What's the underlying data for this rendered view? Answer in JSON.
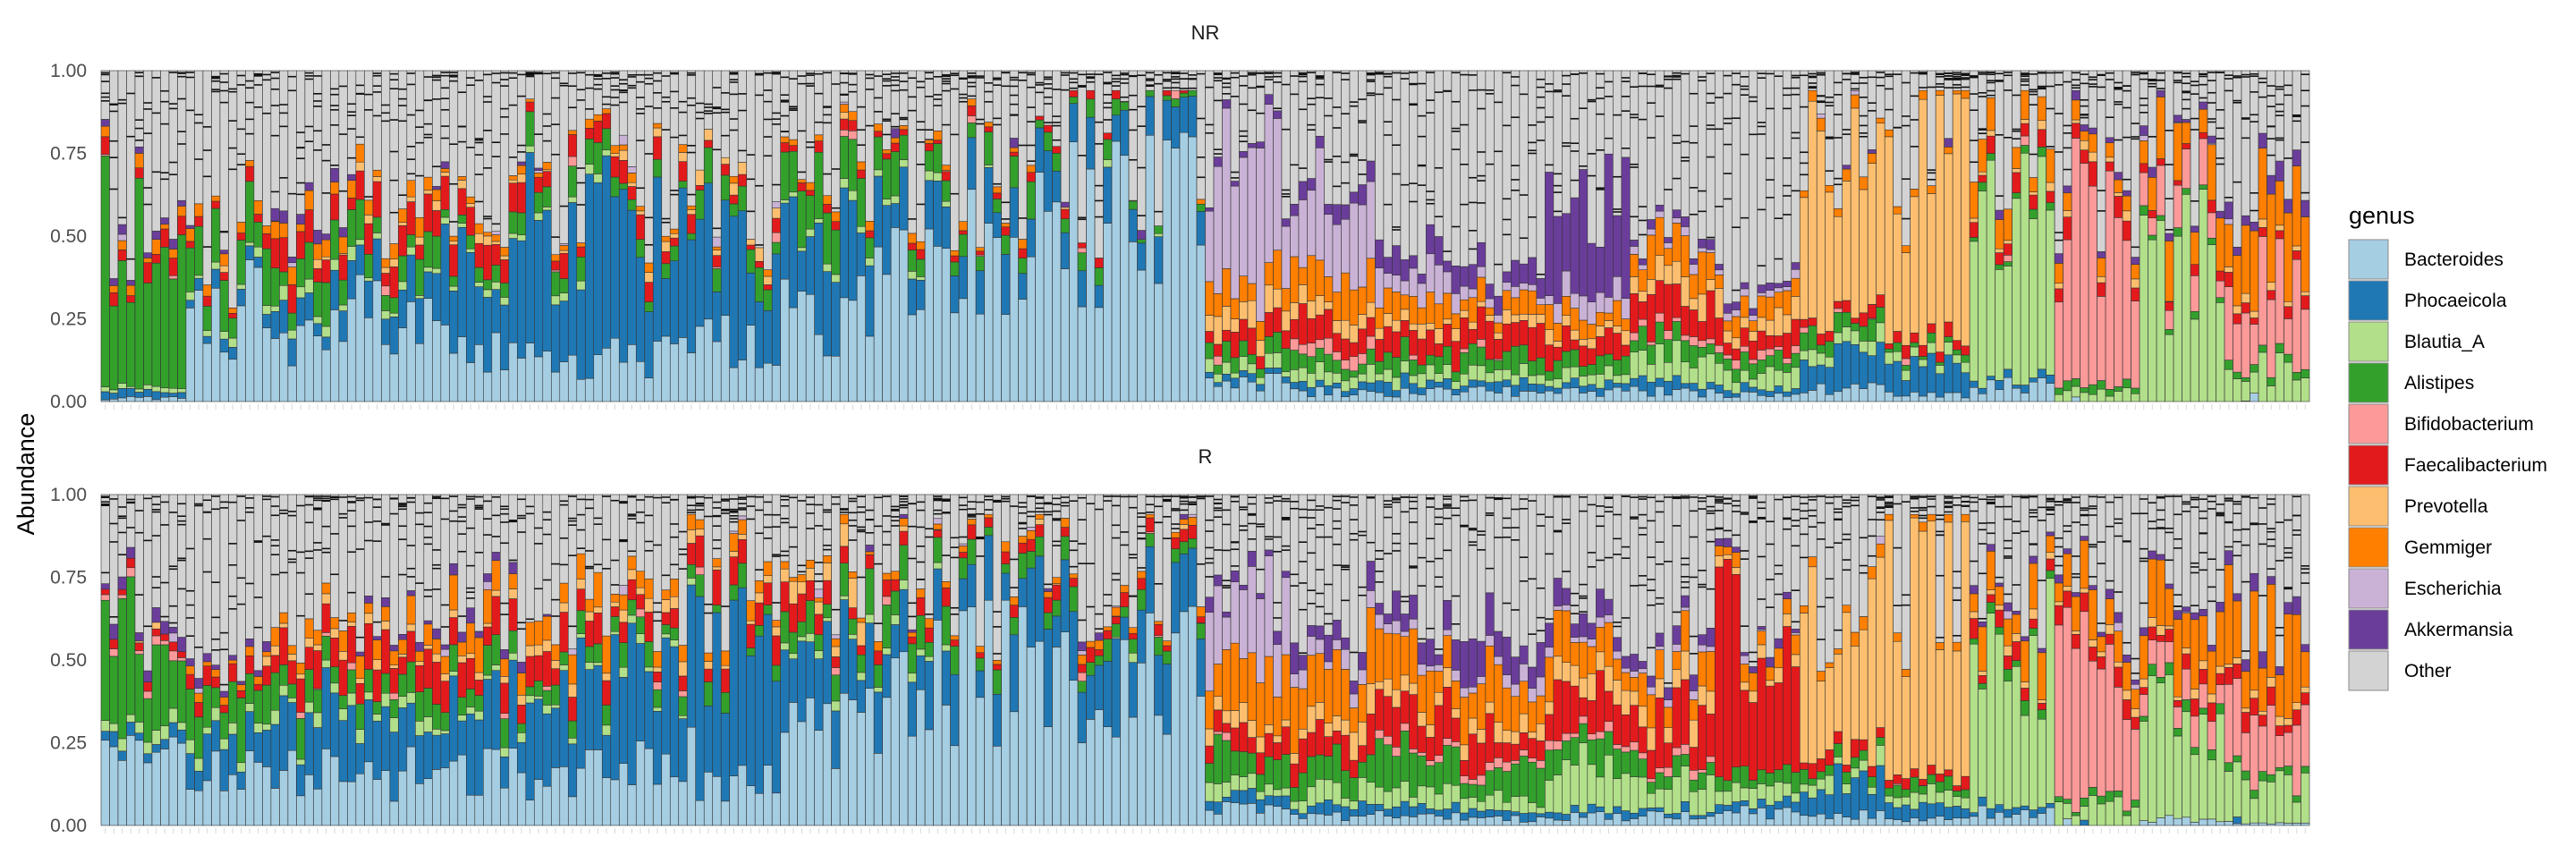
{
  "chart_data": {
    "type": "bar",
    "stacked": true,
    "ylabel": "Abundance",
    "xlabel": "",
    "ylim": [
      0,
      1
    ],
    "y_ticks": [
      "0.00",
      "0.25",
      "0.50",
      "0.75",
      "1.00"
    ],
    "grid": false,
    "legend_placement": "right",
    "legend": {
      "title": "genus",
      "entries": [
        {
          "name": "Bacteroides",
          "color": "#a6cee3"
        },
        {
          "name": "Phocaeicola",
          "color": "#1f78b4"
        },
        {
          "name": "Blautia_A",
          "color": "#b2df8a"
        },
        {
          "name": "Alistipes",
          "color": "#33a02c"
        },
        {
          "name": "Bifidobacterium",
          "color": "#fb9a99"
        },
        {
          "name": "Faecalibacterium",
          "color": "#e31a1c"
        },
        {
          "name": "Prevotella",
          "color": "#fdbf6f"
        },
        {
          "name": "Gemmiger",
          "color": "#ff7f00"
        },
        {
          "name": "Escherichia",
          "color": "#cab2d6"
        },
        {
          "name": "Akkermansia",
          "color": "#6a3d9a"
        },
        {
          "name": "Other",
          "color": "#d3d3d3"
        }
      ]
    },
    "panels": [
      {
        "title": "NR",
        "samples_per_segment": 10,
        "segments": [
          {
            "Bacteroides": 0.01,
            "Phocaeicola": 0.02,
            "Blautia_A": 0.01,
            "Alistipes": 0.46,
            "Faecalibacterium": 0.04,
            "Gemmiger": 0.03,
            "Akkermansia": 0.02
          },
          {
            "Bacteroides": 0.28,
            "Phocaeicola": 0.04,
            "Blautia_A": 0.02,
            "Alistipes": 0.12,
            "Faecalibacterium": 0.03,
            "Gemmiger": 0.03
          },
          {
            "Bacteroides": 0.22,
            "Phocaeicola": 0.08,
            "Blautia_A": 0.03,
            "Alistipes": 0.09,
            "Faecalibacterium": 0.07,
            "Gemmiger": 0.04,
            "Akkermansia": 0.03
          },
          {
            "Bacteroides": 0.25,
            "Phocaeicola": 0.1,
            "Blautia_A": 0.02,
            "Alistipes": 0.08,
            "Faecalibacterium": 0.08,
            "Prevotella": 0.02,
            "Gemmiger": 0.04
          },
          {
            "Bacteroides": 0.18,
            "Phocaeicola": 0.24,
            "Blautia_A": 0.02,
            "Alistipes": 0.05,
            "Faecalibacterium": 0.12,
            "Prevotella": 0.02,
            "Gemmiger": 0.02
          },
          {
            "Bacteroides": 0.12,
            "Phocaeicola": 0.4,
            "Blautia_A": 0.02,
            "Alistipes": 0.08,
            "Faecalibacterium": 0.06,
            "Gemmiger": 0.02
          },
          {
            "Bacteroides": 0.14,
            "Phocaeicola": 0.38,
            "Alistipes": 0.04,
            "Faecalibacterium": 0.05,
            "Prevotella": 0.02,
            "Gemmiger": 0.02
          },
          {
            "Bacteroides": 0.18,
            "Phocaeicola": 0.3,
            "Alistipes": 0.07,
            "Faecalibacterium": 0.03,
            "Prevotella": 0.03
          },
          {
            "Bacteroides": 0.26,
            "Phocaeicola": 0.22,
            "Blautia_A": 0.02,
            "Alistipes": 0.13,
            "Faecalibacterium": 0.03,
            "Gemmiger": 0.02
          },
          {
            "Bacteroides": 0.36,
            "Phocaeicola": 0.14,
            "Blautia_A": 0.02,
            "Alistipes": 0.09,
            "Faecalibacterium": 0.02,
            "Gemmiger": 0.02
          },
          {
            "Bacteroides": 0.42,
            "Phocaeicola": 0.12,
            "Alistipes": 0.08,
            "Faecalibacterium": 0.02,
            "Gemmiger": 0.02
          },
          {
            "Bacteroides": 0.62,
            "Phocaeicola": 0.12,
            "Alistipes": 0.04,
            "Faecalibacterium": 0.02
          },
          {
            "Bacteroides": 0.7,
            "Phocaeicola": 0.1,
            "Alistipes": 0.02
          },
          {
            "Bacteroides": 0.06,
            "Phocaeicola": 0.02,
            "Blautia_A": 0.03,
            "Alistipes": 0.05,
            "Faecalibacterium": 0.06,
            "Prevotella": 0.06,
            "Gemmiger": 0.08,
            "Escherichia": 0.34,
            "Akkermansia": 0.02
          },
          {
            "Bacteroides": 0.03,
            "Phocaeicola": 0.02,
            "Blautia_A": 0.04,
            "Alistipes": 0.04,
            "Bifidobacterium": 0.04,
            "Faecalibacterium": 0.08,
            "Prevotella": 0.04,
            "Gemmiger": 0.1,
            "Escherichia": 0.22,
            "Akkermansia": 0.04
          },
          {
            "Bacteroides": 0.03,
            "Phocaeicola": 0.03,
            "Blautia_A": 0.03,
            "Alistipes": 0.05,
            "Faecalibacterium": 0.06,
            "Prevotella": 0.03,
            "Gemmiger": 0.08,
            "Escherichia": 0.08,
            "Akkermansia": 0.06
          },
          {
            "Bacteroides": 0.03,
            "Phocaeicola": 0.03,
            "Blautia_A": 0.03,
            "Alistipes": 0.06,
            "Faecalibacterium": 0.08,
            "Prevotella": 0.03,
            "Gemmiger": 0.05,
            "Escherichia": 0.03,
            "Akkermansia": 0.06
          },
          {
            "Bacteroides": 0.03,
            "Phocaeicola": 0.02,
            "Blautia_A": 0.03,
            "Alistipes": 0.04,
            "Faecalibacterium": 0.06,
            "Prevotella": 0.03,
            "Gemmiger": 0.05,
            "Escherichia": 0.05,
            "Akkermansia": 0.3
          },
          {
            "Bacteroides": 0.03,
            "Phocaeicola": 0.03,
            "Blautia_A": 0.07,
            "Alistipes": 0.05,
            "Bifidobacterium": 0.02,
            "Faecalibacterium": 0.1,
            "Prevotella": 0.06,
            "Gemmiger": 0.1,
            "Escherichia": 0.02,
            "Akkermansia": 0.02
          },
          {
            "Bacteroides": 0.02,
            "Phocaeicola": 0.02,
            "Blautia_A": 0.05,
            "Alistipes": 0.04,
            "Bifidobacterium": 0.02,
            "Faecalibacterium": 0.06,
            "Prevotella": 0.06,
            "Gemmiger": 0.05,
            "Escherichia": 0.02,
            "Akkermansia": 0.02
          },
          {
            "Bacteroides": 0.04,
            "Phocaeicola": 0.1,
            "Blautia_A": 0.04,
            "Alistipes": 0.05,
            "Faecalibacterium": 0.03,
            "Prevotella": 0.46,
            "Gemmiger": 0.03
          },
          {
            "Bacteroides": 0.02,
            "Phocaeicola": 0.08,
            "Blautia_A": 0.03,
            "Alistipes": 0.02,
            "Faecalibacterium": 0.03,
            "Prevotella": 0.62,
            "Gemmiger": 0.02
          },
          {
            "Bacteroides": 0.05,
            "Phocaeicola": 0.02,
            "Blautia_A": 0.52,
            "Alistipes": 0.02,
            "Faecalibacterium": 0.04,
            "Prevotella": 0.02,
            "Gemmiger": 0.08
          },
          {
            "Blautia_A": 0.03,
            "Alistipes": 0.02,
            "Bifidobacterium": 0.52,
            "Faecalibacterium": 0.06,
            "Prevotella": 0.02,
            "Gemmiger": 0.05,
            "Akkermansia": 0.02
          },
          {
            "Blautia_A": 0.42,
            "Alistipes": 0.02,
            "Bifidobacterium": 0.1,
            "Faecalibacterium": 0.03,
            "Gemmiger": 0.14,
            "Akkermansia": 0.02
          },
          {
            "Blautia_A": 0.1,
            "Alistipes": 0.02,
            "Bifidobacterium": 0.22,
            "Faecalibacterium": 0.03,
            "Prevotella": 0.02,
            "Gemmiger": 0.22,
            "Akkermansia": 0.04
          }
        ]
      },
      {
        "title": "R",
        "samples_per_segment": 10,
        "segments": [
          {
            "Bacteroides": 0.18,
            "Phocaeicola": 0.03,
            "Blautia_A": 0.03,
            "Alistipes": 0.28,
            "Bifidobacterium": 0.02,
            "Faecalibacterium": 0.02,
            "Akkermansia": 0.03
          },
          {
            "Bacteroides": 0.16,
            "Phocaeicola": 0.1,
            "Blautia_A": 0.03,
            "Alistipes": 0.13,
            "Faecalibacterium": 0.04,
            "Gemmiger": 0.02,
            "Akkermansia": 0.02
          },
          {
            "Bacteroides": 0.16,
            "Phocaeicola": 0.16,
            "Blautia_A": 0.03,
            "Alistipes": 0.08,
            "Faecalibacterium": 0.08,
            "Prevotella": 0.02,
            "Gemmiger": 0.04
          },
          {
            "Bacteroides": 0.16,
            "Phocaeicola": 0.18,
            "Blautia_A": 0.03,
            "Alistipes": 0.06,
            "Faecalibacterium": 0.09,
            "Prevotella": 0.02,
            "Gemmiger": 0.06,
            "Akkermansia": 0.02
          },
          {
            "Bacteroides": 0.16,
            "Phocaeicola": 0.18,
            "Blautia_A": 0.02,
            "Alistipes": 0.06,
            "Faecalibacterium": 0.08,
            "Prevotella": 0.02,
            "Gemmiger": 0.07,
            "Akkermansia": 0.03
          },
          {
            "Bacteroides": 0.15,
            "Phocaeicola": 0.26,
            "Blautia_A": 0.02,
            "Alistipes": 0.05,
            "Faecalibacterium": 0.08,
            "Prevotella": 0.03,
            "Gemmiger": 0.08
          },
          {
            "Bacteroides": 0.22,
            "Phocaeicola": 0.34,
            "Blautia_A": 0.02,
            "Alistipes": 0.05,
            "Faecalibacterium": 0.06,
            "Prevotella": 0.03,
            "Gemmiger": 0.04
          },
          {
            "Bacteroides": 0.12,
            "Phocaeicola": 0.4,
            "Alistipes": 0.05,
            "Faecalibacterium": 0.07,
            "Prevotella": 0.02,
            "Gemmiger": 0.04
          },
          {
            "Bacteroides": 0.3,
            "Phocaeicola": 0.2,
            "Blautia_A": 0.02,
            "Alistipes": 0.08,
            "Faecalibacterium": 0.06,
            "Prevotella": 0.06,
            "Gemmiger": 0.02
          },
          {
            "Bacteroides": 0.42,
            "Phocaeicola": 0.14,
            "Blautia_A": 0.02,
            "Alistipes": 0.09,
            "Faecalibacterium": 0.04,
            "Gemmiger": 0.02
          },
          {
            "Bacteroides": 0.5,
            "Phocaeicola": 0.16,
            "Alistipes": 0.06,
            "Faecalibacterium": 0.03,
            "Gemmiger": 0.02
          },
          {
            "Bacteroides": 0.44,
            "Phocaeicola": 0.2,
            "Alistipes": 0.05,
            "Faecalibacterium": 0.03,
            "Gemmiger": 0.02
          },
          {
            "Bacteroides": 0.46,
            "Phocaeicola": 0.14,
            "Alistipes": 0.04,
            "Faecalibacterium": 0.03,
            "Gemmiger": 0.02
          },
          {
            "Bacteroides": 0.05,
            "Phocaeicola": 0.03,
            "Blautia_A": 0.04,
            "Alistipes": 0.1,
            "Faecalibacterium": 0.06,
            "Prevotella": 0.04,
            "Gemmiger": 0.16,
            "Escherichia": 0.2,
            "Akkermansia": 0.03
          },
          {
            "Bacteroides": 0.03,
            "Phocaeicola": 0.03,
            "Blautia_A": 0.05,
            "Alistipes": 0.08,
            "Faecalibacterium": 0.08,
            "Prevotella": 0.06,
            "Gemmiger": 0.16,
            "Escherichia": 0.04,
            "Akkermansia": 0.07
          },
          {
            "Bacteroides": 0.03,
            "Phocaeicola": 0.03,
            "Blautia_A": 0.05,
            "Alistipes": 0.1,
            "Bifidobacterium": 0.02,
            "Faecalibacterium": 0.12,
            "Prevotella": 0.05,
            "Gemmiger": 0.12,
            "Escherichia": 0.03,
            "Akkermansia": 0.06
          },
          {
            "Bacteroides": 0.02,
            "Phocaeicola": 0.02,
            "Blautia_A": 0.04,
            "Alistipes": 0.08,
            "Bifidobacterium": 0.02,
            "Faecalibacterium": 0.1,
            "Prevotella": 0.04,
            "Gemmiger": 0.12,
            "Escherichia": 0.04,
            "Akkermansia": 0.1
          },
          {
            "Bacteroides": 0.03,
            "Phocaeicola": 0.02,
            "Blautia_A": 0.16,
            "Alistipes": 0.1,
            "Bifidobacterium": 0.02,
            "Faecalibacterium": 0.12,
            "Prevotella": 0.06,
            "Gemmiger": 0.12,
            "Escherichia": 0.02,
            "Akkermansia": 0.06
          },
          {
            "Bacteroides": 0.03,
            "Phocaeicola": 0.02,
            "Blautia_A": 0.08,
            "Alistipes": 0.06,
            "Bifidobacterium": 0.02,
            "Faecalibacterium": 0.14,
            "Prevotella": 0.06,
            "Gemmiger": 0.08,
            "Escherichia": 0.02,
            "Akkermansia": 0.04
          },
          {
            "Bacteroides": 0.04,
            "Phocaeicola": 0.03,
            "Blautia_A": 0.04,
            "Alistipes": 0.05,
            "Faecalibacterium": 0.44,
            "Prevotella": 0.03,
            "Gemmiger": 0.04,
            "Akkermansia": 0.02
          },
          {
            "Bacteroides": 0.03,
            "Phocaeicola": 0.1,
            "Blautia_A": 0.04,
            "Alistipes": 0.04,
            "Faecalibacterium": 0.04,
            "Prevotella": 0.42,
            "Gemmiger": 0.03
          },
          {
            "Bacteroides": 0.02,
            "Phocaeicola": 0.04,
            "Blautia_A": 0.05,
            "Alistipes": 0.03,
            "Faecalibacterium": 0.03,
            "Prevotella": 0.58,
            "Gemmiger": 0.02
          },
          {
            "Bacteroides": 0.04,
            "Phocaeicola": 0.02,
            "Blautia_A": 0.5,
            "Alistipes": 0.03,
            "Faecalibacterium": 0.04,
            "Prevotella": 0.02,
            "Gemmiger": 0.1,
            "Akkermansia": 0.02
          },
          {
            "Blautia_A": 0.06,
            "Alistipes": 0.02,
            "Bifidobacterium": 0.4,
            "Faecalibacterium": 0.04,
            "Prevotella": 0.02,
            "Gemmiger": 0.1,
            "Akkermansia": 0.02
          },
          {
            "Bacteroides": 0.02,
            "Blautia_A": 0.3,
            "Alistipes": 0.03,
            "Bifidobacterium": 0.08,
            "Faecalibacterium": 0.04,
            "Prevotella": 0.02,
            "Gemmiger": 0.16,
            "Akkermansia": 0.02
          },
          {
            "Bacteroides": 0.01,
            "Blautia_A": 0.12,
            "Alistipes": 0.02,
            "Bifidobacterium": 0.18,
            "Faecalibacterium": 0.04,
            "Prevotella": 0.02,
            "Gemmiger": 0.22,
            "Akkermansia": 0.04
          }
        ]
      }
    ]
  }
}
